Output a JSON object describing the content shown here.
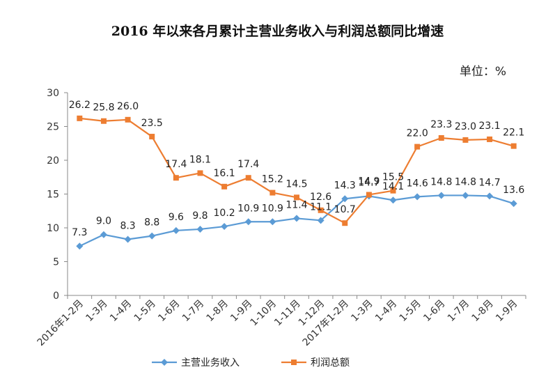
{
  "chart_data": {
    "type": "line",
    "title": "2016 年以来各月累计主营业务收入与利润总额同比增速",
    "unit": "单位：%",
    "categories": [
      "2016年1-2月",
      "1-3月",
      "1-4月",
      "1-5月",
      "1-6月",
      "1-7月",
      "1-8月",
      "1-9月",
      "1-10月",
      "1-11月",
      "1-12月",
      "2017年1-2月",
      "1-3月",
      "1-4月",
      "1-5月",
      "1-6月",
      "1-7月",
      "1-8月",
      "1-9月"
    ],
    "ylim": [
      0,
      30
    ],
    "yticks": [
      0,
      5,
      10,
      15,
      20,
      25,
      30
    ],
    "grid": false,
    "legend": "bottom",
    "series": [
      {
        "name": "主营业务收入",
        "color": "#5b9bd5",
        "marker": "diamond",
        "values": [
          7.3,
          9.0,
          8.3,
          8.8,
          9.6,
          9.8,
          10.2,
          10.9,
          10.9,
          11.4,
          11.1,
          14.3,
          14.7,
          14.1,
          14.6,
          14.8,
          14.8,
          14.7,
          13.6
        ],
        "labels": [
          "7.3",
          "9.0",
          "8.3",
          "8.8",
          "9.6",
          "9.8",
          "10.2",
          "10.9",
          "10.9",
          "11.4",
          "11.1",
          "14.3",
          "14.7",
          "14.1",
          "14.6",
          "14.8",
          "14.8",
          "14.7",
          "13.6"
        ]
      },
      {
        "name": "利润总额",
        "color": "#ed7d31",
        "marker": "square",
        "values": [
          26.2,
          25.8,
          26.0,
          23.5,
          17.4,
          18.1,
          16.1,
          17.4,
          15.2,
          14.5,
          12.6,
          10.7,
          14.9,
          15.5,
          22.0,
          23.3,
          23.0,
          23.1,
          22.1
        ],
        "labels": [
          "26.2",
          "25.8",
          "26.0",
          "23.5",
          "17.4",
          "18.1",
          "16.1",
          "17.4",
          "15.2",
          "14.5",
          "12.6",
          "10.7",
          "14.9",
          "15.5",
          "22.0",
          "23.3",
          "23.0",
          "23.1",
          "22.1"
        ]
      }
    ]
  }
}
